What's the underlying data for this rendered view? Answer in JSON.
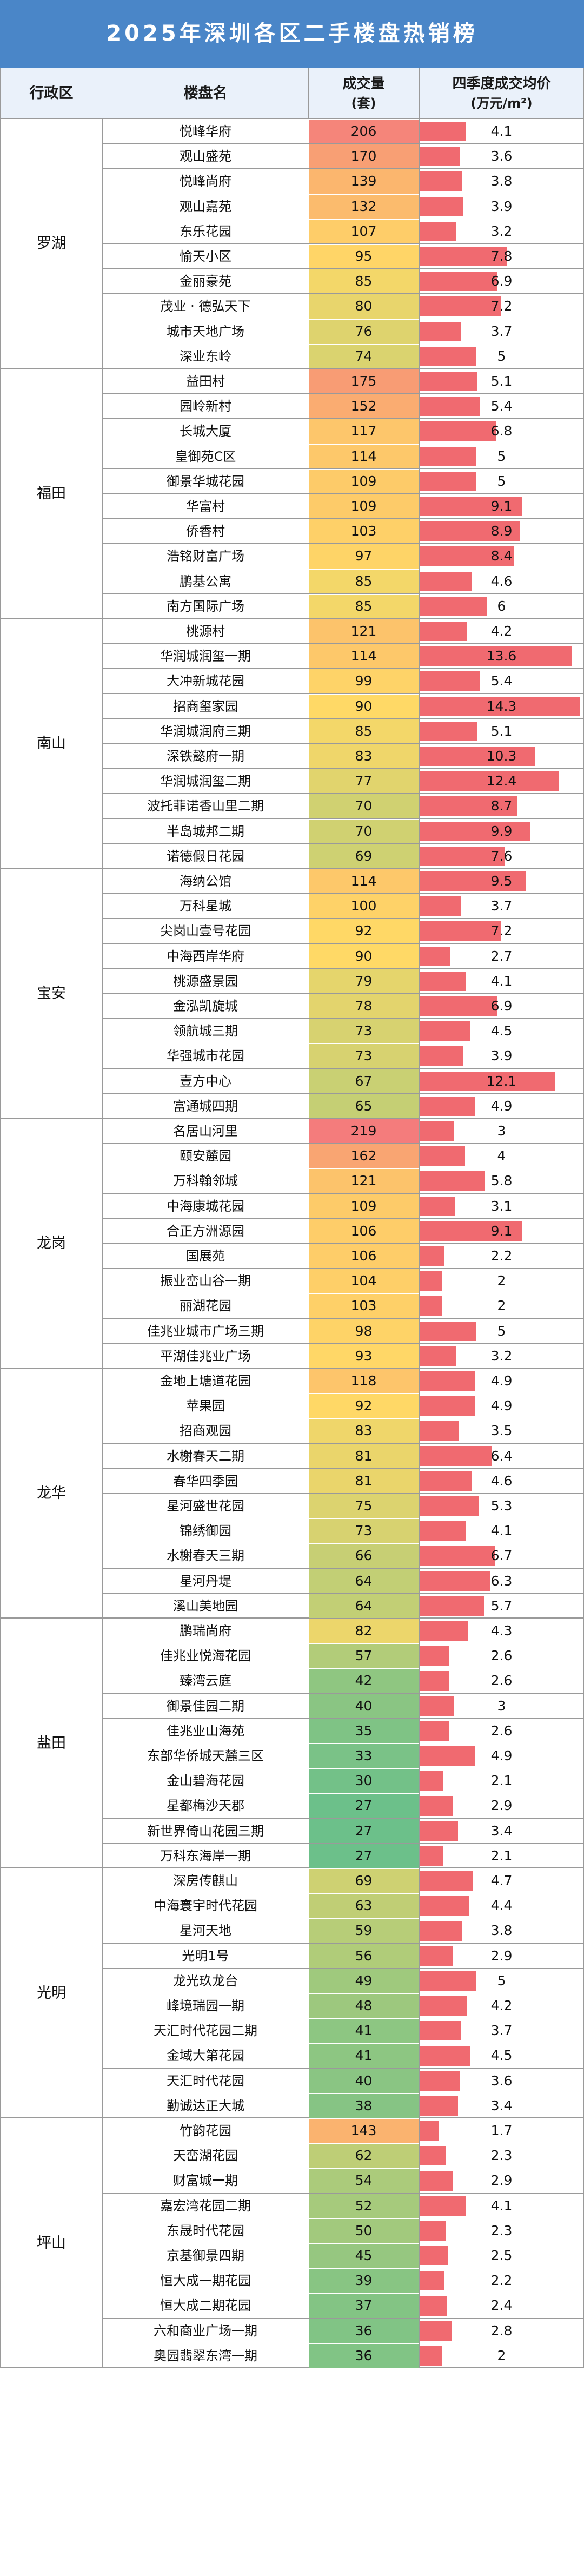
{
  "title": "2025年深圳各区二手楼盘热销榜",
  "headers": {
    "district": "行政区",
    "estate": "楼盘名",
    "volume_line1": "成交量",
    "volume_line2": "(套)",
    "price_line1": "四季度成交均价",
    "price_line2": "(万元/m²)"
  },
  "scale": {
    "volume_max": 219,
    "price_max": 14.3
  },
  "colors": {
    "header_bg": "#4a86c8",
    "price_bar": "#f06a70",
    "volume_high": "#f47c7c",
    "volume_mid": "#ffd966",
    "volume_low": "#6cc08a"
  },
  "districts": [
    {
      "name": "罗湖",
      "rows": [
        {
          "estate": "悦峰华府",
          "volume": 206,
          "price": 4.1
        },
        {
          "estate": "观山盛苑",
          "volume": 170,
          "price": 3.6
        },
        {
          "estate": "悦峰尚府",
          "volume": 139,
          "price": 3.8
        },
        {
          "estate": "观山嘉苑",
          "volume": 132,
          "price": 3.9
        },
        {
          "estate": "东乐花园",
          "volume": 107,
          "price": 3.2
        },
        {
          "estate": "愉天小区",
          "volume": 95,
          "price": 7.8
        },
        {
          "estate": "金丽豪苑",
          "volume": 85,
          "price": 6.9
        },
        {
          "estate": "茂业 · 德弘天下",
          "volume": 80,
          "price": 7.2
        },
        {
          "estate": "城市天地广场",
          "volume": 76,
          "price": 3.7
        },
        {
          "estate": "深业东岭",
          "volume": 74,
          "price": 5.0
        }
      ]
    },
    {
      "name": "福田",
      "rows": [
        {
          "estate": "益田村",
          "volume": 175,
          "price": 5.1
        },
        {
          "estate": "园岭新村",
          "volume": 152,
          "price": 5.4
        },
        {
          "estate": "长城大厦",
          "volume": 117,
          "price": 6.8
        },
        {
          "estate": "皇御苑C区",
          "volume": 114,
          "price": 5.0
        },
        {
          "estate": "御景华城花园",
          "volume": 109,
          "price": 5.0
        },
        {
          "estate": "华富村",
          "volume": 109,
          "price": 9.1
        },
        {
          "estate": "侨香村",
          "volume": 103,
          "price": 8.9
        },
        {
          "estate": "浩铭财富广场",
          "volume": 97,
          "price": 8.4
        },
        {
          "estate": "鹏基公寓",
          "volume": 85,
          "price": 4.6
        },
        {
          "estate": "南方国际广场",
          "volume": 85,
          "price": 6.0
        }
      ]
    },
    {
      "name": "南山",
      "rows": [
        {
          "estate": "桃源村",
          "volume": 121,
          "price": 4.2
        },
        {
          "estate": "华润城润玺一期",
          "volume": 114,
          "price": 13.6
        },
        {
          "estate": "大冲新城花园",
          "volume": 99,
          "price": 5.4
        },
        {
          "estate": "招商玺家园",
          "volume": 90,
          "price": 14.3
        },
        {
          "estate": "华润城润府三期",
          "volume": 85,
          "price": 5.1
        },
        {
          "estate": "深铁懿府一期",
          "volume": 83,
          "price": 10.3
        },
        {
          "estate": "华润城润玺二期",
          "volume": 77,
          "price": 12.4
        },
        {
          "estate": "波托菲诺香山里二期",
          "volume": 70,
          "price": 8.7
        },
        {
          "estate": "半岛城邦二期",
          "volume": 70,
          "price": 9.9
        },
        {
          "estate": "诺德假日花园",
          "volume": 69,
          "price": 7.6
        }
      ]
    },
    {
      "name": "宝安",
      "rows": [
        {
          "estate": "海纳公馆",
          "volume": 114,
          "price": 9.5
        },
        {
          "estate": "万科星城",
          "volume": 100,
          "price": 3.7
        },
        {
          "estate": "尖岗山壹号花园",
          "volume": 92,
          "price": 7.2
        },
        {
          "estate": "中海西岸华府",
          "volume": 90,
          "price": 2.7
        },
        {
          "estate": "桃源盛景园",
          "volume": 79,
          "price": 4.1
        },
        {
          "estate": "金泓凯旋城",
          "volume": 78,
          "price": 6.9
        },
        {
          "estate": "领航城三期",
          "volume": 73,
          "price": 4.5
        },
        {
          "estate": "华强城市花园",
          "volume": 73,
          "price": 3.9
        },
        {
          "estate": "壹方中心",
          "volume": 67,
          "price": 12.1
        },
        {
          "estate": "富通城四期",
          "volume": 65,
          "price": 4.9
        }
      ]
    },
    {
      "name": "龙岗",
      "rows": [
        {
          "estate": "名居山河里",
          "volume": 219,
          "price": 3.0
        },
        {
          "estate": "颐安麓园",
          "volume": 162,
          "price": 4.0
        },
        {
          "estate": "万科翰邻城",
          "volume": 121,
          "price": 5.8
        },
        {
          "estate": "中海康城花园",
          "volume": 109,
          "price": 3.1
        },
        {
          "estate": "合正方洲源园",
          "volume": 106,
          "price": 9.1
        },
        {
          "estate": "国展苑",
          "volume": 106,
          "price": 2.2
        },
        {
          "estate": "振业峦山谷一期",
          "volume": 104,
          "price": 2.0
        },
        {
          "estate": "丽湖花园",
          "volume": 103,
          "price": 2.0
        },
        {
          "estate": "佳兆业城市广场三期",
          "volume": 98,
          "price": 5.0
        },
        {
          "estate": "平湖佳兆业广场",
          "volume": 93,
          "price": 3.2
        }
      ]
    },
    {
      "name": "龙华",
      "rows": [
        {
          "estate": "金地上塘道花园",
          "volume": 118,
          "price": 4.9
        },
        {
          "estate": "苹果园",
          "volume": 92,
          "price": 4.9
        },
        {
          "estate": "招商观园",
          "volume": 83,
          "price": 3.5
        },
        {
          "estate": "水榭春天二期",
          "volume": 81,
          "price": 6.4
        },
        {
          "estate": "春华四季园",
          "volume": 81,
          "price": 4.6
        },
        {
          "estate": "星河盛世花园",
          "volume": 75,
          "price": 5.3
        },
        {
          "estate": "锦绣御园",
          "volume": 73,
          "price": 4.1
        },
        {
          "estate": "水榭春天三期",
          "volume": 66,
          "price": 6.7
        },
        {
          "estate": "星河丹堤",
          "volume": 64,
          "price": 6.3
        },
        {
          "estate": "溪山美地园",
          "volume": 64,
          "price": 5.7
        }
      ]
    },
    {
      "name": "盐田",
      "rows": [
        {
          "estate": "鹏瑞尚府",
          "volume": 82,
          "price": 4.3
        },
        {
          "estate": "佳兆业悦海花园",
          "volume": 57,
          "price": 2.6
        },
        {
          "estate": "臻湾云庭",
          "volume": 42,
          "price": 2.6
        },
        {
          "estate": "御景佳园二期",
          "volume": 40,
          "price": 3.0
        },
        {
          "estate": "佳兆业山海苑",
          "volume": 35,
          "price": 2.6
        },
        {
          "estate": "东部华侨城天麓三区",
          "volume": 33,
          "price": 4.9
        },
        {
          "estate": "金山碧海花园",
          "volume": 30,
          "price": 2.1
        },
        {
          "estate": "星都梅沙天郡",
          "volume": 27,
          "price": 2.9
        },
        {
          "estate": "新世界倚山花园三期",
          "volume": 27,
          "price": 3.4
        },
        {
          "estate": "万科东海岸一期",
          "volume": 27,
          "price": 2.1
        }
      ]
    },
    {
      "name": "光明",
      "rows": [
        {
          "estate": "深房传麒山",
          "volume": 69,
          "price": 4.7
        },
        {
          "estate": "中海寰宇时代花园",
          "volume": 63,
          "price": 4.4
        },
        {
          "estate": "星河天地",
          "volume": 59,
          "price": 3.8
        },
        {
          "estate": "光明1号",
          "volume": 56,
          "price": 2.9
        },
        {
          "estate": "龙光玖龙台",
          "volume": 49,
          "price": 5.0
        },
        {
          "estate": "峰境瑞园一期",
          "volume": 48,
          "price": 4.2
        },
        {
          "estate": "天汇时代花园二期",
          "volume": 41,
          "price": 3.7
        },
        {
          "estate": "金域大第花园",
          "volume": 41,
          "price": 4.5
        },
        {
          "estate": "天汇时代花园",
          "volume": 40,
          "price": 3.6
        },
        {
          "estate": "勤诚达正大城",
          "volume": 38,
          "price": 3.4
        }
      ]
    },
    {
      "name": "坪山",
      "rows": [
        {
          "estate": "竹韵花园",
          "volume": 143,
          "price": 1.7
        },
        {
          "estate": "天峦湖花园",
          "volume": 62,
          "price": 2.3
        },
        {
          "estate": "财富城一期",
          "volume": 54,
          "price": 2.9
        },
        {
          "estate": "嘉宏湾花园二期",
          "volume": 52,
          "price": 4.1
        },
        {
          "estate": "东晟时代花园",
          "volume": 50,
          "price": 2.3
        },
        {
          "estate": "京基御景四期",
          "volume": 45,
          "price": 2.5
        },
        {
          "estate": "恒大成一期花园",
          "volume": 39,
          "price": 2.2
        },
        {
          "estate": "恒大成二期花园",
          "volume": 37,
          "price": 2.4
        },
        {
          "estate": "六和商业广场一期",
          "volume": 36,
          "price": 2.8
        },
        {
          "estate": "奥园翡翠东湾一期",
          "volume": 36,
          "price": 2.0
        }
      ]
    }
  ]
}
